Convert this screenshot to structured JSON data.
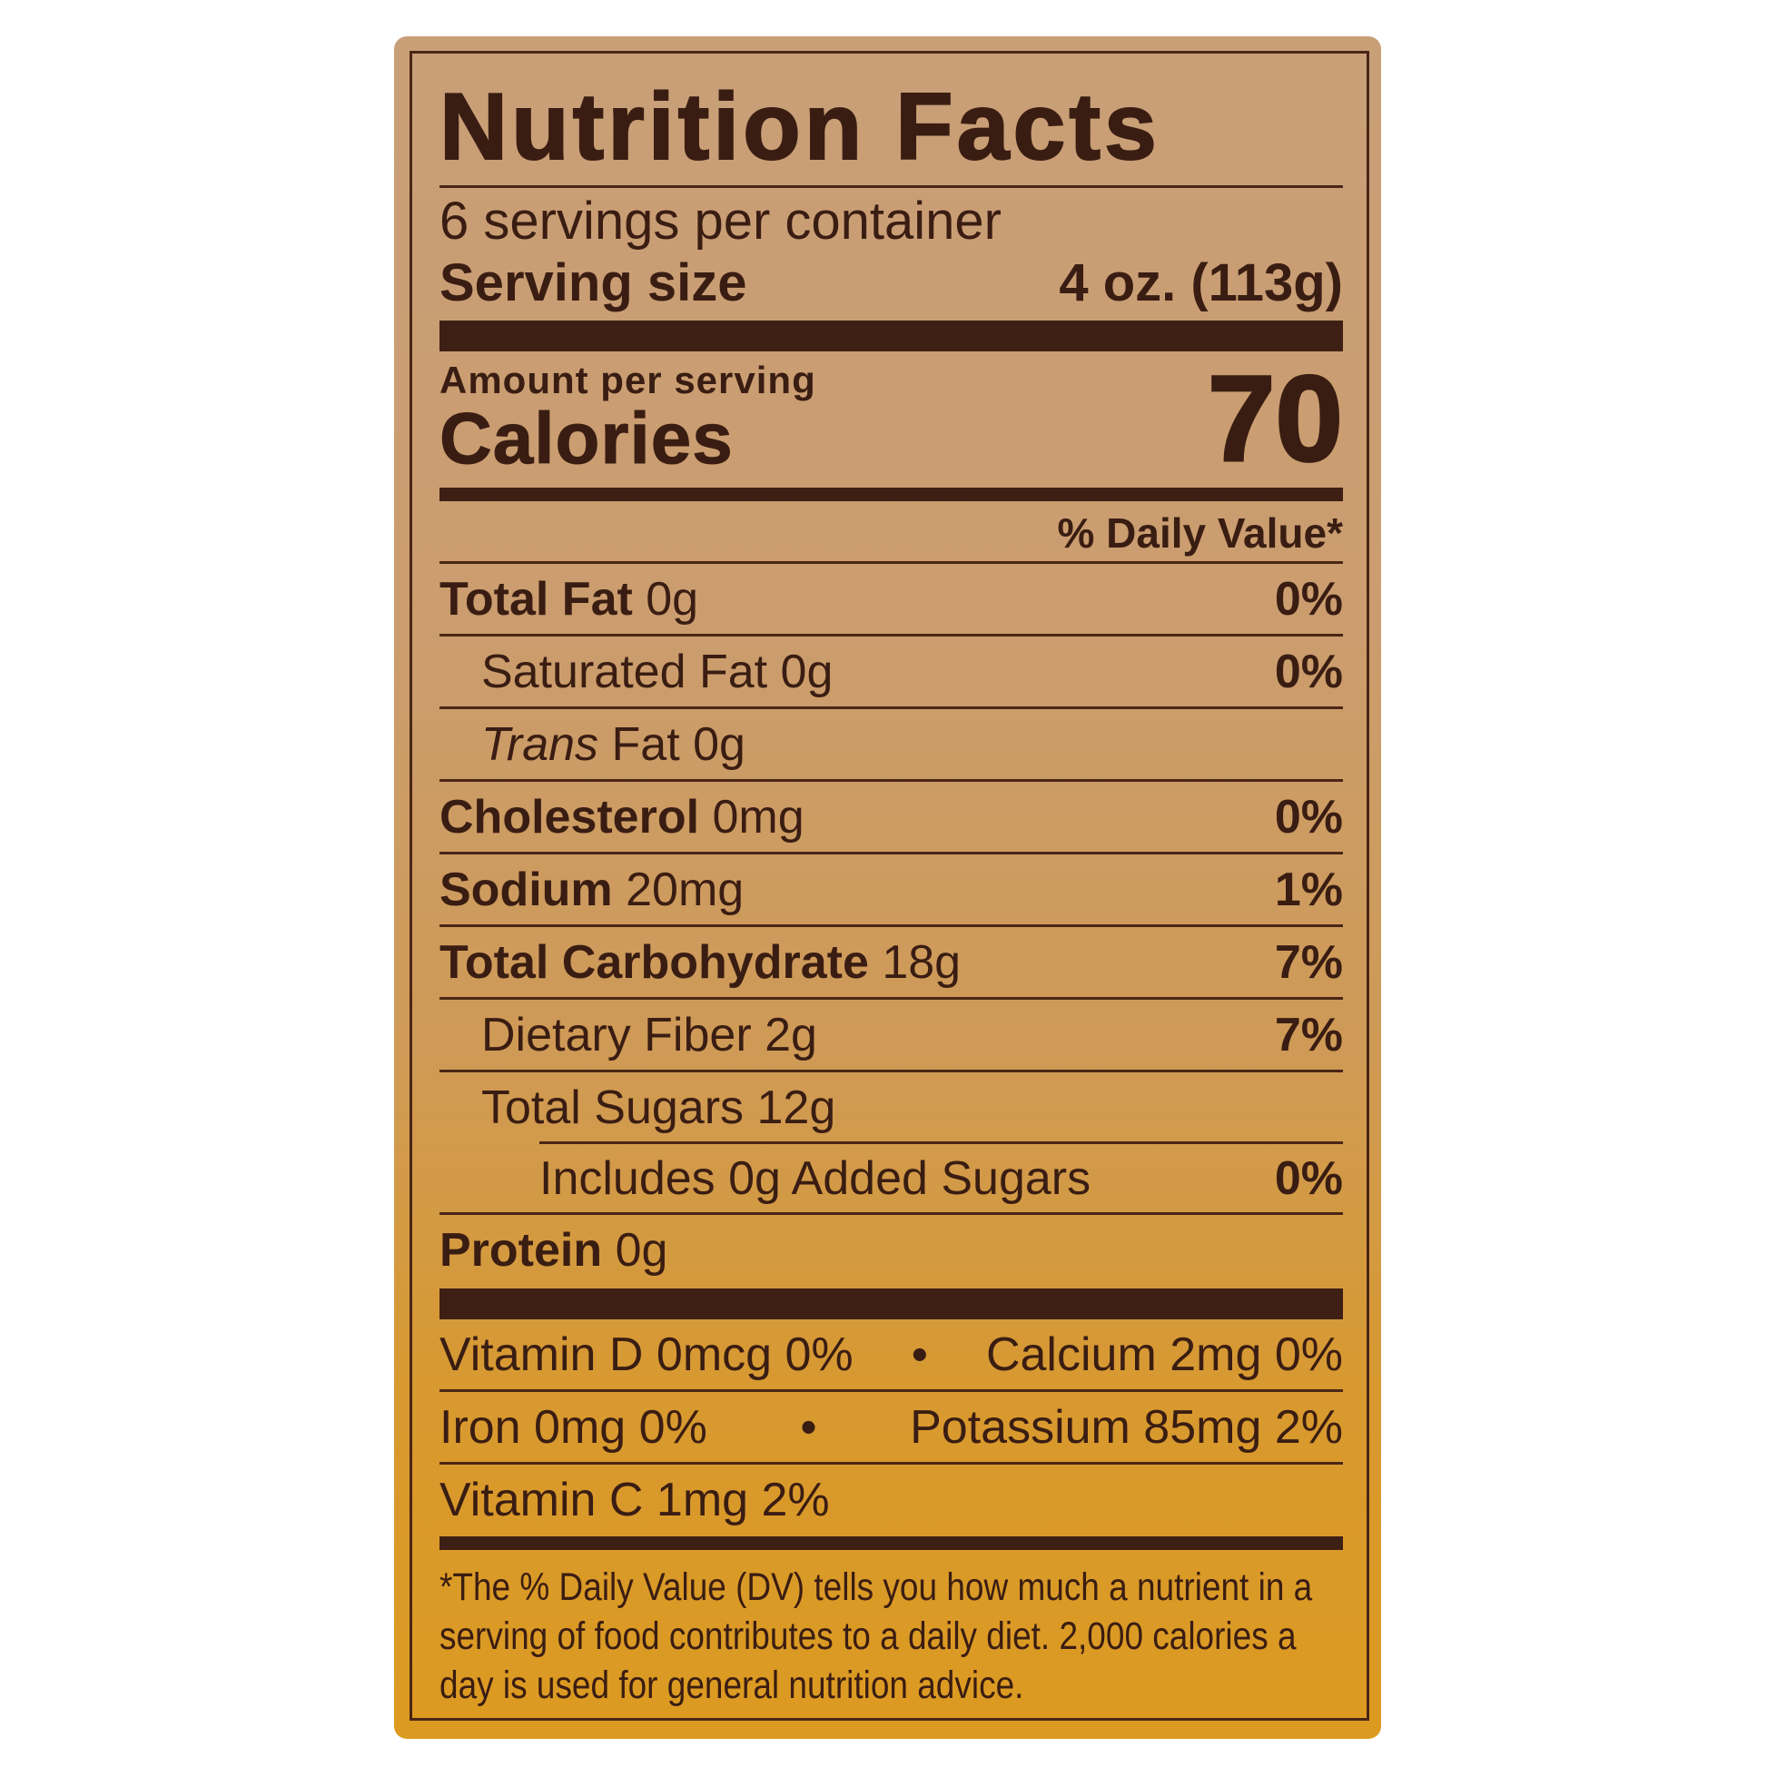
{
  "title": "Nutrition Facts",
  "servings_per_container": "6 servings per container",
  "serving_size": {
    "label": "Serving size",
    "value": "4 oz. (113g)"
  },
  "amount_per_serving": "Amount per serving",
  "calories": {
    "label": "Calories",
    "value": "70"
  },
  "daily_value_header": "% Daily Value*",
  "nutrients": [
    {
      "label": "Total Fat",
      "amount": "0g",
      "dv": "0%"
    },
    {
      "label": "Saturated Fat",
      "amount": "0g",
      "dv": "0%"
    },
    {
      "label": "Trans",
      "label_rest": "Fat",
      "amount": "0g",
      "dv": ""
    },
    {
      "label": "Cholesterol",
      "amount": "0mg",
      "dv": "0%"
    },
    {
      "label": "Sodium",
      "amount": "20mg",
      "dv": "1%"
    },
    {
      "label": "Total Carbohydrate",
      "amount": "18g",
      "dv": "7%"
    },
    {
      "label": "Dietary Fiber",
      "amount": "2g",
      "dv": "7%"
    },
    {
      "label": "Total Sugars",
      "amount": "12g",
      "dv": ""
    },
    {
      "label": "Includes 0g Added Sugars",
      "amount": "",
      "dv": "0%"
    },
    {
      "label": "Protein",
      "amount": "0g",
      "dv": ""
    }
  ],
  "vitamins": [
    {
      "left": "Vitamin D 0mcg 0%",
      "right": "Calcium 2mg 0%"
    },
    {
      "left": "Iron 0mg 0%",
      "right": "Potassium 85mg 2%"
    },
    {
      "left": "Vitamin C 1mg 2%"
    }
  ],
  "bullet": "•",
  "footnote": "*The % Daily Value (DV) tells you how much a nutrient in a serving of food contributes to a daily diet.  2,000 calories a day is used for general nutrition advice.",
  "colors": {
    "ink": "#3a1d12",
    "background_top": "#c99f78",
    "background_bottom": "#dc9a20"
  }
}
